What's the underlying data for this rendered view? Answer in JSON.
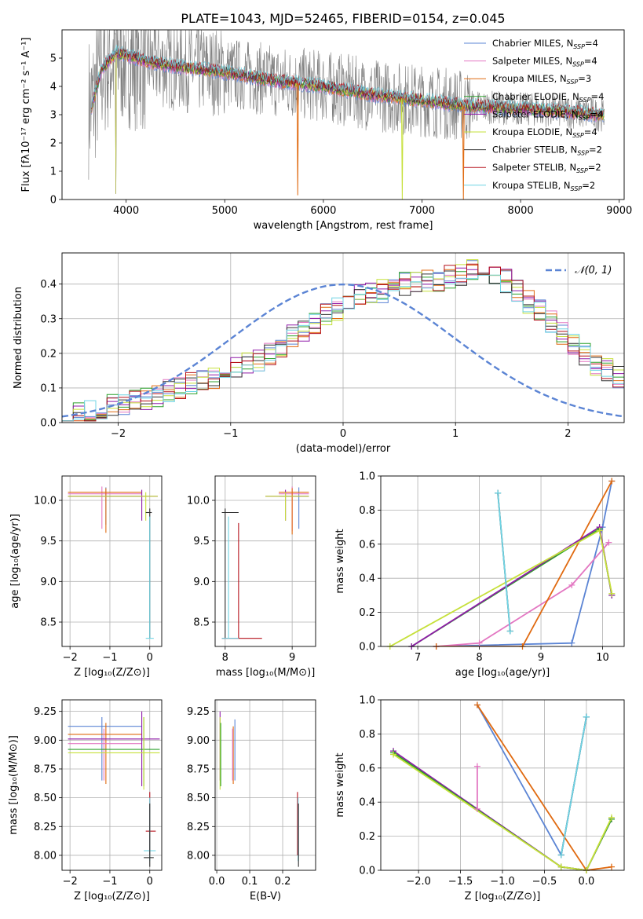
{
  "figure_title": "PLATE=1043, MJD=52465, FIBERID=0154, z=0.045",
  "legend_colors": {
    "chabrier_miles": "#5b84d4",
    "salpeter_miles": "#e377c2",
    "kroupa_miles": "#e06a10",
    "chabrier_elodie": "#2ca02c",
    "salpeter_elodie": "#8f1aa8",
    "kroupa_elodie": "#c6e03a",
    "chabrier_stelib": "#303030",
    "salpeter_stelib": "#b5101a",
    "kroupa_stelib": "#6fd4e4",
    "observed": "#7f7f7f",
    "gauss": "#5b84d4"
  },
  "chart_data": [
    {
      "id": "spectrum",
      "type": "line",
      "xlabel": "wavelength [Angstrom, rest frame]",
      "ylabel": "Flux [fλ10⁻¹⁷ erg cm⁻² s⁻¹ A⁻¹]",
      "xlim": [
        3350,
        9050
      ],
      "ylim": [
        0,
        6
      ],
      "xticks": [
        4000,
        5000,
        6000,
        7000,
        8000,
        9000
      ],
      "yticks": [
        0,
        1,
        2,
        3,
        4,
        5
      ],
      "legend_position": "top-right",
      "legend": [
        {
          "key": "chabrier_miles",
          "label": "Chabrier MILES, N_SSP=4"
        },
        {
          "key": "salpeter_miles",
          "label": "Salpeter MILES, N_SSP=4"
        },
        {
          "key": "kroupa_miles",
          "label": "Kroupa MILES, N_SSP=3"
        },
        {
          "key": "chabrier_elodie",
          "label": "Chabrier ELODIE, N_SSP=4"
        },
        {
          "key": "salpeter_elodie",
          "label": "Salpeter ELODIE, N_SSP=4"
        },
        {
          "key": "kroupa_elodie",
          "label": "Kroupa ELODIE, N_SSP=4"
        },
        {
          "key": "chabrier_stelib",
          "label": "Chabrier STELIB, N_SSP=2"
        },
        {
          "key": "salpeter_stelib",
          "label": "Salpeter STELIB, N_SSP=2"
        },
        {
          "key": "kroupa_stelib",
          "label": "Kroupa STELIB, N_SSP=2"
        }
      ],
      "model_continuum": {
        "x": [
          3650,
          3750,
          3900,
          4000,
          4200,
          4500,
          5000,
          5500,
          6000,
          6500,
          7000,
          7500,
          8000,
          8500,
          8800
        ],
        "y": [
          3.3,
          4.6,
          5.2,
          5.1,
          4.9,
          4.7,
          4.5,
          4.2,
          4.0,
          3.7,
          3.5,
          3.3,
          3.2,
          3.1,
          3.0
        ]
      },
      "model_dips": [
        {
          "x": 5740,
          "key": "kroupa_miles",
          "y": 0.15
        },
        {
          "x": 6800,
          "key": "kroupa_elodie",
          "y": 0
        },
        {
          "x": 7420,
          "key": "kroupa_miles",
          "y": 0
        }
      ]
    },
    {
      "id": "residuals",
      "type": "step",
      "xlabel": "(data-model)/error",
      "ylabel": "Normed distribution",
      "xlim": [
        -2.5,
        2.5
      ],
      "ylim": [
        0,
        0.49
      ],
      "xticks": [
        -2,
        -1,
        0,
        1,
        2
      ],
      "yticks": [
        0.0,
        0.1,
        0.2,
        0.3,
        0.4
      ],
      "legend": [
        {
          "label": "𝒩(0, 1)"
        }
      ],
      "legend_position": "top-right",
      "bin_width": 0.1,
      "bin_start": -2.5,
      "histogram": [
        0.02,
        0.03,
        0.03,
        0.04,
        0.05,
        0.05,
        0.06,
        0.07,
        0.08,
        0.09,
        0.1,
        0.11,
        0.12,
        0.13,
        0.15,
        0.16,
        0.17,
        0.18,
        0.2,
        0.22,
        0.25,
        0.27,
        0.29,
        0.31,
        0.33,
        0.35,
        0.37,
        0.38,
        0.38,
        0.39,
        0.4,
        0.4,
        0.41,
        0.41,
        0.42,
        0.43,
        0.44,
        0.44,
        0.43,
        0.41,
        0.38,
        0.35,
        0.32,
        0.29,
        0.26,
        0.23,
        0.2,
        0.17,
        0.15,
        0.13
      ]
    },
    {
      "id": "age_vs_z",
      "type": "scatter",
      "xlabel": "Z [log₁₀(Z/Z⊙)]",
      "ylabel": "age  [log₁₀(age/yr)]",
      "xlim": [
        -2.2,
        0.3
      ],
      "ylim": [
        8.2,
        10.3
      ],
      "xticks": [
        -2,
        -1,
        0
      ],
      "yticks": [
        8.5,
        9.0,
        9.5,
        10.0
      ],
      "points": [
        {
          "key": "chabrier_miles",
          "x": -1.1,
          "y": 10.05,
          "x0": -2.05,
          "x1": -0.2,
          "y0": 9.7,
          "y1": 10.16
        },
        {
          "key": "salpeter_miles",
          "x": -1.2,
          "y": 10.08,
          "x0": -2.05,
          "x1": -0.2,
          "y0": 9.65,
          "y1": 10.17
        },
        {
          "key": "kroupa_miles",
          "x": -1.1,
          "y": 10.1,
          "x0": -2.05,
          "x1": -0.2,
          "y0": 9.6,
          "y1": 10.15
        },
        {
          "key": "salpeter_elodie",
          "x": -0.2,
          "y": 10.05,
          "x0": -2.05,
          "x1": 0.2,
          "y0": 9.75,
          "y1": 10.13
        },
        {
          "key": "kroupa_elodie",
          "x": -0.1,
          "y": 10.05,
          "x0": -2.05,
          "x1": 0.2,
          "y0": 9.75,
          "y1": 10.1
        },
        {
          "key": "chabrier_stelib",
          "x": 0.0,
          "y": 9.85,
          "x0": -0.1,
          "x1": 0.05,
          "y0": 8.3,
          "y1": 9.9
        },
        {
          "key": "kroupa_stelib",
          "x": 0.0,
          "y": 8.3,
          "x0": -0.1,
          "x1": 0.1,
          "y0": 8.3,
          "y1": 9.8
        }
      ]
    },
    {
      "id": "age_vs_mass",
      "type": "scatter",
      "xlabel": "mass [log₁₀(M/M⊙)]",
      "ylabel": "",
      "xlim": [
        7.85,
        9.35
      ],
      "ylim": [
        8.2,
        10.3
      ],
      "xticks": [
        8,
        9
      ],
      "yticks": [
        8.5,
        9.0,
        9.5,
        10.0
      ],
      "points": [
        {
          "key": "chabrier_miles",
          "x": 9.1,
          "y": 10.05,
          "x0": 8.8,
          "x1": 9.25,
          "y0": 9.65,
          "y1": 10.16
        },
        {
          "key": "salpeter_miles",
          "x": 9.0,
          "y": 10.08,
          "x0": 8.8,
          "x1": 9.25,
          "y0": 9.62,
          "y1": 10.17
        },
        {
          "key": "kroupa_miles",
          "x": 9.0,
          "y": 10.1,
          "x0": 8.8,
          "x1": 9.25,
          "y0": 9.58,
          "y1": 10.15
        },
        {
          "key": "salpeter_elodie",
          "x": 8.9,
          "y": 10.05,
          "x0": 8.6,
          "x1": 9.25,
          "y0": 9.75,
          "y1": 10.13
        },
        {
          "key": "kroupa_elodie",
          "x": 8.9,
          "y": 10.05,
          "x0": 8.6,
          "x1": 9.25,
          "y0": 9.75,
          "y1": 10.1
        },
        {
          "key": "chabrier_stelib",
          "x": 8.0,
          "y": 9.85,
          "x0": 7.95,
          "x1": 8.2,
          "y0": 8.3,
          "y1": 9.9
        },
        {
          "key": "salpeter_stelib",
          "x": 8.2,
          "y": 8.3,
          "x0": 7.95,
          "x1": 8.55,
          "y0": 8.3,
          "y1": 9.72
        },
        {
          "key": "kroupa_stelib",
          "x": 8.05,
          "y": 8.3,
          "x0": 7.95,
          "x1": 8.2,
          "y0": 8.3,
          "y1": 9.8
        }
      ]
    },
    {
      "id": "weight_vs_age",
      "type": "line",
      "xlabel": "age  [log₁₀(age/yr)]",
      "ylabel": "mass weight",
      "xlim": [
        6.4,
        10.35
      ],
      "ylim": [
        0,
        1.0
      ],
      "xticks": [
        7,
        8,
        9,
        10
      ],
      "yticks": [
        0.0,
        0.2,
        0.4,
        0.6,
        0.8,
        1.0
      ],
      "series": [
        {
          "key": "chabrier_miles",
          "x": [
            7.3,
            9.5,
            10.0,
            10.15
          ],
          "y": [
            0.0,
            0.02,
            0.7,
            0.97
          ]
        },
        {
          "key": "salpeter_miles",
          "x": [
            7.3,
            8.0,
            9.5,
            10.1
          ],
          "y": [
            0.0,
            0.02,
            0.36,
            0.61
          ]
        },
        {
          "key": "kroupa_miles",
          "x": [
            7.3,
            8.7,
            10.15
          ],
          "y": [
            0.0,
            0.0,
            0.97
          ]
        },
        {
          "key": "chabrier_elodie",
          "x": [
            6.9,
            9.95,
            10.15
          ],
          "y": [
            0.0,
            0.69,
            0.3
          ]
        },
        {
          "key": "salpeter_elodie",
          "x": [
            6.9,
            9.95,
            10.15
          ],
          "y": [
            0.0,
            0.7,
            0.3
          ]
        },
        {
          "key": "kroupa_elodie",
          "x": [
            6.55,
            9.95,
            10.15
          ],
          "y": [
            0.0,
            0.68,
            0.31
          ]
        },
        {
          "key": "chabrier_stelib",
          "x": [
            8.3,
            8.5
          ],
          "y": [
            0.9,
            0.09
          ]
        },
        {
          "key": "kroupa_stelib",
          "x": [
            8.3,
            8.5
          ],
          "y": [
            0.9,
            0.09
          ]
        }
      ]
    },
    {
      "id": "mass_vs_z",
      "type": "scatter",
      "xlabel": "Z [log₁₀(Z/Z⊙)]",
      "ylabel": "mass [log₁₀(M/M⊙)]",
      "xlim": [
        -2.2,
        0.3
      ],
      "ylim": [
        7.87,
        9.35
      ],
      "xticks": [
        -2,
        -1,
        0
      ],
      "yticks": [
        8.0,
        8.25,
        8.5,
        8.75,
        9.0,
        9.25
      ],
      "points": [
        {
          "key": "chabrier_miles",
          "x": -1.2,
          "y": 9.12,
          "x0": -2.05,
          "x1": -0.2,
          "y0": 8.65,
          "y1": 9.2
        },
        {
          "key": "kroupa_miles",
          "x": -1.1,
          "y": 9.05,
          "x0": -2.05,
          "x1": -0.2,
          "y0": 8.62,
          "y1": 9.15
        },
        {
          "key": "salpeter_miles",
          "x": -1.15,
          "y": 8.97,
          "x0": -2.05,
          "x1": -0.2,
          "y0": 8.65,
          "y1": 9.1
        },
        {
          "key": "salpeter_elodie",
          "x": -0.2,
          "y": 9.01,
          "x0": -2.05,
          "x1": 0.25,
          "y0": 8.6,
          "y1": 9.25
        },
        {
          "key": "chabrier_elodie",
          "x": -0.15,
          "y": 8.92,
          "x0": -2.05,
          "x1": 0.25,
          "y0": 8.6,
          "y1": 9.2
        },
        {
          "key": "kroupa_elodie",
          "x": -0.15,
          "y": 8.89,
          "x0": -2.05,
          "x1": 0.25,
          "y0": 8.57,
          "y1": 9.2
        },
        {
          "key": "salpeter_stelib",
          "x": 0.0,
          "y": 8.21,
          "x0": -0.1,
          "x1": 0.15,
          "y0": 8.0,
          "y1": 8.55
        },
        {
          "key": "kroupa_stelib",
          "x": 0.0,
          "y": 8.04,
          "x0": -0.15,
          "x1": 0.15,
          "y0": 7.95,
          "y1": 8.5
        },
        {
          "key": "chabrier_stelib",
          "x": 0.0,
          "y": 7.98,
          "x0": -0.15,
          "x1": 0.1,
          "y0": 7.9,
          "y1": 8.45
        }
      ]
    },
    {
      "id": "mass_vs_ebv",
      "type": "scatter",
      "xlabel": "E(B-V)",
      "ylabel": "",
      "xlim": [
        -0.005,
        0.3
      ],
      "ylim": [
        7.87,
        9.35
      ],
      "xticks": [
        0.0,
        0.1,
        0.2
      ],
      "yticks": [
        8.0,
        8.25,
        8.5,
        8.75,
        9.0,
        9.25
      ],
      "points": [
        {
          "key": "salpeter_elodie",
          "x": 0.01,
          "y0": 8.65,
          "y1": 9.25
        },
        {
          "key": "kroupa_elodie",
          "x": 0.01,
          "y0": 8.57,
          "y1": 9.2
        },
        {
          "key": "chabrier_elodie",
          "x": 0.012,
          "y0": 8.6,
          "y1": 9.15
        },
        {
          "key": "chabrier_miles",
          "x": 0.055,
          "y0": 8.65,
          "y1": 9.18
        },
        {
          "key": "kroupa_miles",
          "x": 0.05,
          "y0": 8.62,
          "y1": 9.12
        },
        {
          "key": "salpeter_miles",
          "x": 0.048,
          "y0": 8.65,
          "y1": 9.1
        },
        {
          "key": "salpeter_stelib",
          "x": 0.245,
          "y0": 8.0,
          "y1": 8.55
        },
        {
          "key": "kroupa_stelib",
          "x": 0.247,
          "y0": 7.95,
          "y1": 8.5
        },
        {
          "key": "chabrier_stelib",
          "x": 0.248,
          "y0": 7.9,
          "y1": 8.45
        }
      ]
    },
    {
      "id": "weight_vs_z",
      "type": "line",
      "xlabel": "Z [log₁₀(Z/Z⊙)]",
      "ylabel": "mass weight",
      "xlim": [
        -2.45,
        0.45
      ],
      "ylim": [
        0,
        1.0
      ],
      "xticks": [
        -2.0,
        -1.5,
        -1.0,
        -0.5,
        0.0
      ],
      "yticks": [
        0.0,
        0.2,
        0.4,
        0.6,
        0.8,
        1.0
      ],
      "series": [
        {
          "key": "chabrier_miles",
          "x": [
            -1.3,
            -0.3,
            0.0
          ],
          "y": [
            0.97,
            0.09,
            0.9
          ]
        },
        {
          "key": "kroupa_miles",
          "x": [
            -1.3,
            0.0,
            0.3
          ],
          "y": [
            0.97,
            0.0,
            0.02
          ]
        },
        {
          "key": "salpeter_miles",
          "x": [
            -1.3,
            -1.3,
            -0.3,
            0.0
          ],
          "y": [
            0.61,
            0.36,
            0.02,
            0.0
          ]
        },
        {
          "key": "salpeter_elodie",
          "x": [
            -2.3,
            -0.3,
            0.0,
            0.3
          ],
          "y": [
            0.7,
            0.02,
            0.0,
            0.3
          ]
        },
        {
          "key": "chabrier_elodie",
          "x": [
            -2.3,
            -0.3,
            0.0,
            0.3
          ],
          "y": [
            0.69,
            0.02,
            0.0,
            0.3
          ]
        },
        {
          "key": "kroupa_elodie",
          "x": [
            -2.3,
            -0.3,
            0.0,
            0.3
          ],
          "y": [
            0.68,
            0.02,
            0.0,
            0.31
          ]
        },
        {
          "key": "chabrier_stelib",
          "x": [
            -0.3,
            0.0
          ],
          "y": [
            0.09,
            0.9
          ]
        },
        {
          "key": "kroupa_stelib",
          "x": [
            -0.3,
            0.0
          ],
          "y": [
            0.09,
            0.9
          ]
        }
      ]
    }
  ]
}
